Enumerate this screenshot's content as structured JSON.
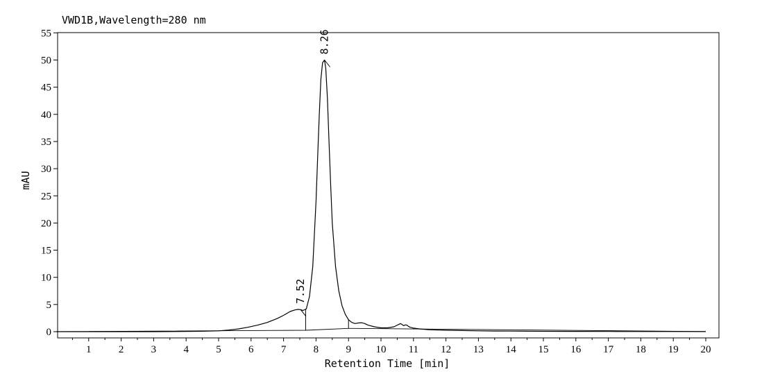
{
  "chart_data": {
    "type": "line",
    "title": "VWD1B,Wavelength=280 nm",
    "xlabel": "Retention Time [min]",
    "ylabel": "mAU",
    "xlim": [
      0,
      20.4
    ],
    "ylim": [
      -0.8,
      55
    ],
    "x_ticks": [
      "1",
      "2",
      "3",
      "4",
      "5",
      "6",
      "7",
      "8",
      "9",
      "10",
      "11",
      "12",
      "13",
      "14",
      "15",
      "16",
      "17",
      "18",
      "19",
      "20"
    ],
    "y_ticks": [
      "0",
      "5",
      "10",
      "15",
      "20",
      "25",
      "30",
      "35",
      "40",
      "45",
      "50",
      "55"
    ],
    "grid": false,
    "series": [
      {
        "x": [
          0.0,
          1.0,
          2.0,
          3.0,
          4.0,
          4.5,
          5.0,
          5.3,
          5.6,
          5.9,
          6.2,
          6.5,
          6.8,
          7.0,
          7.2,
          7.35,
          7.45,
          7.52,
          7.6,
          7.7,
          7.8,
          7.9,
          8.0,
          8.05,
          8.1,
          8.15,
          8.2,
          8.26,
          8.3,
          8.35,
          8.4,
          8.45,
          8.5,
          8.6,
          8.7,
          8.8,
          8.9,
          9.0,
          9.1,
          9.2,
          9.3,
          9.4,
          9.5,
          9.6,
          9.8,
          10.0,
          10.2,
          10.4,
          10.5,
          10.6,
          10.65,
          10.7,
          10.75,
          10.8,
          10.85,
          10.9,
          11.0,
          11.2,
          11.5,
          12.0,
          12.5,
          13.0,
          13.5,
          14.0,
          14.5,
          15.0,
          16.0,
          17.0,
          18.0,
          19.0,
          20.0
        ],
        "y": [
          0.0,
          0.0,
          0.0,
          0.0,
          0.05,
          0.08,
          0.15,
          0.3,
          0.5,
          0.8,
          1.2,
          1.7,
          2.4,
          3.0,
          3.7,
          4.0,
          4.1,
          4.05,
          3.9,
          4.2,
          6.5,
          12.0,
          24.0,
          32.0,
          40.0,
          46.5,
          49.5,
          50.0,
          48.5,
          43.0,
          35.0,
          27.0,
          20.0,
          12.0,
          7.5,
          4.8,
          3.2,
          2.2,
          1.7,
          1.5,
          1.6,
          1.65,
          1.5,
          1.2,
          0.9,
          0.7,
          0.7,
          0.9,
          1.2,
          1.5,
          1.3,
          1.1,
          1.25,
          1.2,
          0.95,
          0.8,
          0.65,
          0.5,
          0.35,
          0.25,
          0.2,
          0.15,
          0.12,
          0.1,
          0.08,
          0.06,
          0.05,
          0.04,
          0.03,
          0.02,
          0.01
        ]
      }
    ],
    "peaks": [
      {
        "x": 7.52,
        "y": 4.1,
        "label": "7.52"
      },
      {
        "x": 8.26,
        "y": 50.0,
        "label": "8.26"
      }
    ],
    "baseline": {
      "x": [
        0.0,
        7.68,
        9.0,
        20.0
      ],
      "y": [
        0.0,
        0.25,
        0.6,
        0.02
      ]
    },
    "dividers": [
      7.68,
      9.0
    ]
  }
}
